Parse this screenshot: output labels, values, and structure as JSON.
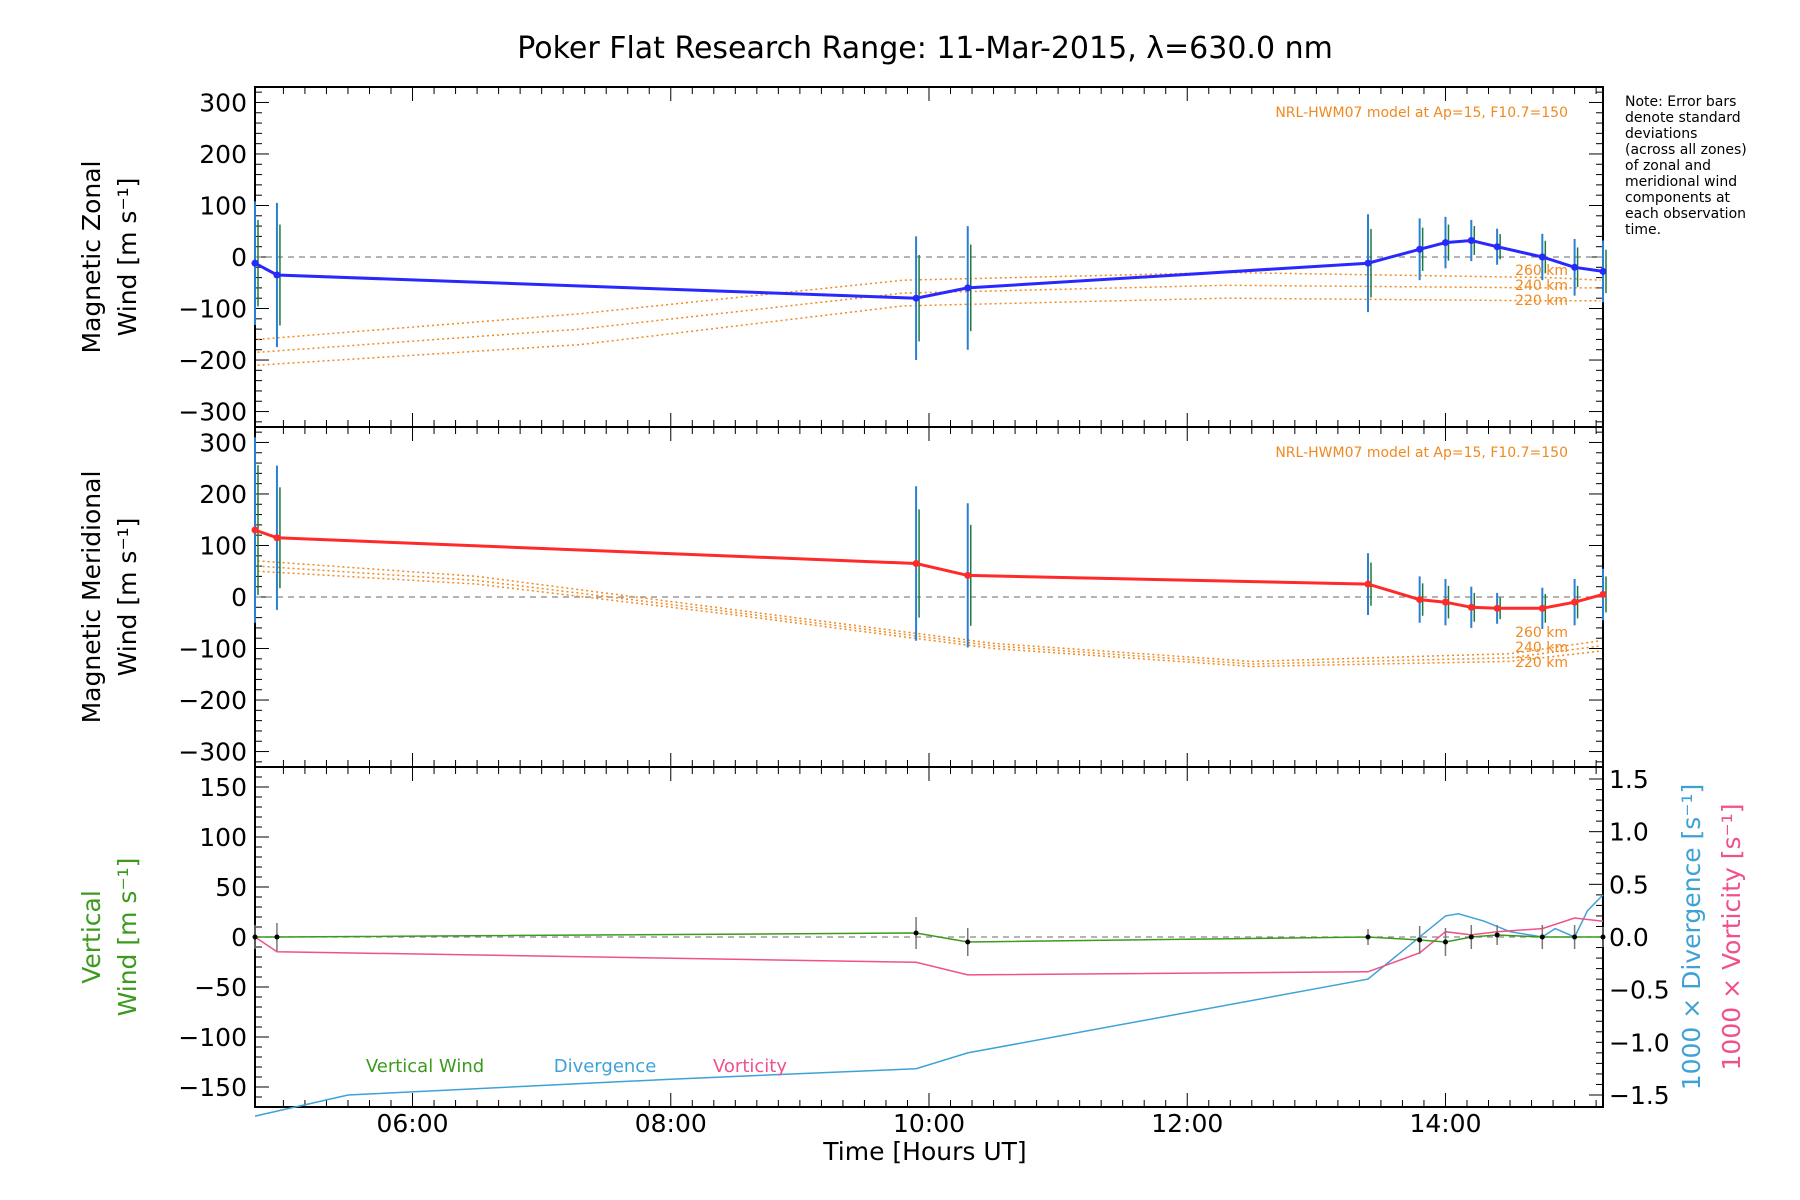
{
  "title": "Poker Flat Research Range: 11-Mar-2015, λ=630.0 nm",
  "note_lines": [
    "Note: Error bars",
    "denote standard",
    "deviations",
    "(across all zones)",
    "of zonal and",
    "meridional wind",
    "components at",
    "each observation",
    "time."
  ],
  "xlabel": "Time [Hours UT]",
  "x_ticks": [
    "06:00",
    "08:00",
    "10:00",
    "12:00",
    "14:00"
  ],
  "model_label": "NRL-HWM07 model at Ap=15, F10.7=150",
  "altitude_labels": [
    "260 km",
    "240 km",
    "220 km"
  ],
  "colors": {
    "zonal": "#2828ff",
    "meridional": "#ff2a2a",
    "vertical": "#3c9a1e",
    "divergence": "#3fa2d6",
    "vorticity": "#f0508c",
    "model": "#f08a20"
  },
  "panels": {
    "zonal": {
      "ylabel": [
        "Magnetic Zonal",
        "Wind [m s⁻¹]"
      ],
      "ylim": [
        -330,
        330
      ],
      "yticks": [
        "300",
        "200",
        "100",
        "0",
        "−100",
        "−200",
        "−300"
      ]
    },
    "meridional": {
      "ylabel": [
        "Magnetic Meridional",
        "Wind [m s⁻¹]"
      ],
      "ylim": [
        -330,
        330
      ],
      "yticks": [
        "300",
        "200",
        "100",
        "0",
        "−100",
        "−200",
        "−300"
      ]
    },
    "vertical": {
      "ylabel": [
        "Vertical",
        "Wind [m s⁻¹]"
      ],
      "ylim": [
        -170,
        170
      ],
      "yticks": [
        "150",
        "100",
        "50",
        "0",
        "−50",
        "−100",
        "−150"
      ],
      "right_ylim": [
        -1.5,
        1.5
      ],
      "right_ticks": [
        "1.5",
        "1.0",
        "0.5",
        "0.0",
        "−0.5",
        "−1.0",
        "−1.5"
      ],
      "right_label_div": "1000 × Divergence [s⁻¹]",
      "right_label_vort": "1000 × Vorticity [s⁻¹]"
    }
  },
  "legend": [
    "Vertical Wind",
    "Divergence",
    "Vorticity"
  ],
  "chart_data": {
    "type": "line",
    "x_unit": "hours UT",
    "xlim": [
      4.78,
      15.22
    ],
    "zonal_wind": {
      "x": [
        4.78,
        4.95,
        9.9,
        10.3,
        13.4,
        13.8,
        14.0,
        14.2,
        14.4,
        14.75,
        15.0,
        15.22
      ],
      "y": [
        -12,
        -35,
        -80,
        -60,
        -12,
        15,
        28,
        32,
        20,
        0,
        -20,
        -28
      ],
      "err": [
        120,
        140,
        120,
        120,
        95,
        60,
        50,
        40,
        35,
        45,
        55,
        60
      ]
    },
    "meridional_wind": {
      "x": [
        4.78,
        4.95,
        9.9,
        10.3,
        13.4,
        13.8,
        14.0,
        14.2,
        14.4,
        14.75,
        15.0,
        15.22
      ],
      "y": [
        130,
        115,
        65,
        42,
        25,
        -5,
        -10,
        -20,
        -22,
        -22,
        -10,
        5
      ],
      "err": [
        180,
        140,
        150,
        140,
        60,
        45,
        45,
        40,
        30,
        40,
        45,
        50
      ]
    },
    "model_zonal": [
      {
        "name": "260 km",
        "x": [
          4.8,
          7.3,
          9.8,
          12.3,
          14.8,
          15.2
        ],
        "y": [
          -160,
          -110,
          -45,
          -30,
          -40,
          -45
        ]
      },
      {
        "name": "240 km",
        "x": [
          4.8,
          7.3,
          9.8,
          12.3,
          14.8,
          15.2
        ],
        "y": [
          -185,
          -140,
          -70,
          -55,
          -60,
          -60
        ]
      },
      {
        "name": "220 km",
        "x": [
          4.8,
          7.3,
          9.8,
          12.3,
          14.8,
          15.2
        ],
        "y": [
          -210,
          -170,
          -95,
          -80,
          -85,
          -85
        ]
      }
    ],
    "model_meridional": [
      {
        "name": "260 km",
        "x": [
          4.8,
          6.5,
          8.5,
          10.5,
          12.5,
          14.5,
          15.2
        ],
        "y": [
          70,
          40,
          -25,
          -90,
          -125,
          -110,
          -85
        ]
      },
      {
        "name": "240 km",
        "x": [
          4.8,
          6.5,
          8.5,
          10.5,
          12.5,
          14.5,
          15.2
        ],
        "y": [
          60,
          32,
          -30,
          -95,
          -130,
          -118,
          -95
        ]
      },
      {
        "name": "220 km",
        "x": [
          4.8,
          6.5,
          8.5,
          10.5,
          12.5,
          14.5,
          15.2
        ],
        "y": [
          50,
          25,
          -35,
          -100,
          -135,
          -125,
          -105
        ]
      }
    ],
    "vertical_wind": {
      "x": [
        4.78,
        4.95,
        9.9,
        10.3,
        13.4,
        13.8,
        14.0,
        14.2,
        14.4,
        14.75,
        15.0,
        15.22
      ],
      "y": [
        0,
        0,
        4,
        -5,
        0,
        -3,
        -5,
        0,
        2,
        0,
        0,
        0
      ],
      "err": [
        12,
        14,
        16,
        14,
        8,
        14,
        14,
        12,
        10,
        12,
        12,
        10
      ]
    },
    "divergence": {
      "x": [
        4.78,
        5.5,
        8.0,
        9.9,
        10.3,
        13.4,
        14.0,
        14.1,
        14.3,
        14.5,
        14.75,
        14.85,
        15.0,
        15.1,
        15.22
      ],
      "y": [
        -1.75,
        -1.5,
        -1.35,
        -1.25,
        -1.1,
        -0.4,
        0.2,
        0.22,
        0.15,
        0.05,
        0.0,
        0.08,
        0.0,
        0.25,
        0.4
      ]
    },
    "vorticity": {
      "x": [
        4.78,
        4.95,
        9.9,
        10.3,
        13.4,
        13.8,
        14.0,
        14.2,
        14.4,
        14.75,
        15.0,
        15.22
      ],
      "y": [
        0.0,
        -0.14,
        -0.24,
        -0.36,
        -0.33,
        -0.15,
        0.05,
        0.02,
        0.05,
        0.08,
        0.18,
        0.15
      ]
    }
  }
}
